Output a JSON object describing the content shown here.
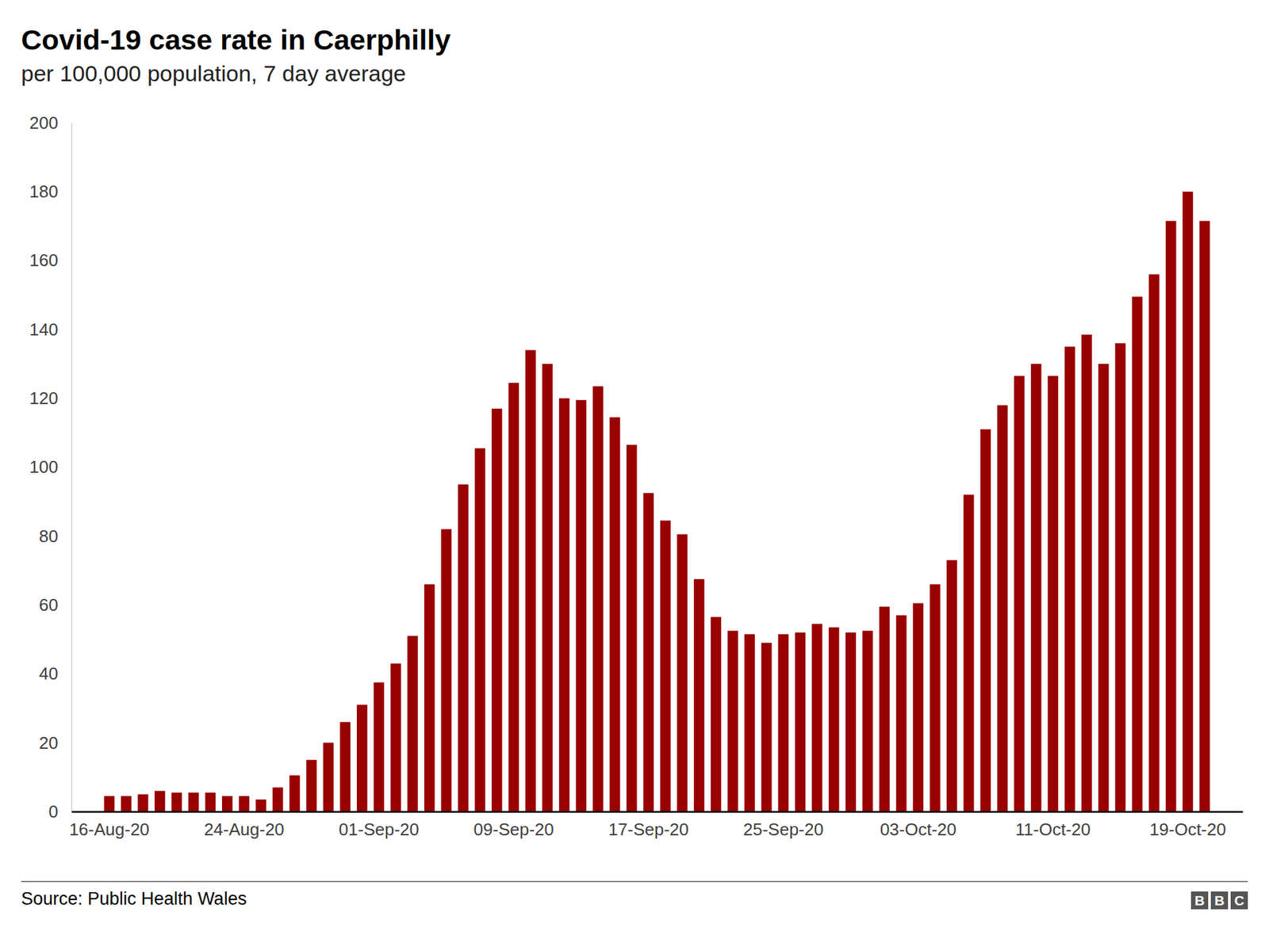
{
  "chart_data": {
    "type": "bar",
    "title": "Covid-19 case rate in Caerphilly",
    "subtitle": "per 100,000 population, 7 day average",
    "source": "Source: Public Health Wales",
    "logo": "BBC",
    "categories": [
      "16-Aug-20",
      null,
      null,
      null,
      null,
      null,
      null,
      null,
      "24-Aug-20",
      null,
      null,
      null,
      null,
      null,
      null,
      null,
      "01-Sep-20",
      null,
      null,
      null,
      null,
      null,
      null,
      null,
      "09-Sep-20",
      null,
      null,
      null,
      null,
      null,
      null,
      null,
      "17-Sep-20",
      null,
      null,
      null,
      null,
      null,
      null,
      null,
      "25-Sep-20",
      null,
      null,
      null,
      null,
      null,
      null,
      null,
      "03-Oct-20",
      null,
      null,
      null,
      null,
      null,
      null,
      null,
      "11-Oct-20",
      null,
      null,
      null,
      null,
      null,
      null,
      null,
      "19-Oct-20",
      null
    ],
    "values": [
      4.5,
      4.5,
      5,
      6,
      5.5,
      5.5,
      5.5,
      4.5,
      4.5,
      3.5,
      7,
      10.5,
      15,
      20,
      26,
      31,
      37.5,
      43,
      51,
      66,
      82,
      95,
      105.5,
      117,
      124.5,
      134,
      130,
      120,
      119.5,
      123.5,
      114.5,
      106.5,
      92.5,
      84.5,
      80.5,
      67.5,
      56.5,
      52.5,
      51.5,
      49,
      51.5,
      52,
      54.5,
      53.5,
      52,
      52.5,
      59.5,
      57,
      60.5,
      66,
      73,
      92,
      111,
      118,
      126.5,
      130,
      126.5,
      135,
      138.5,
      130,
      136,
      149.5,
      156,
      171.5,
      180,
      171.5
    ],
    "color": "#990000",
    "ylim": [
      0,
      200
    ],
    "yticks": [
      0,
      20,
      40,
      60,
      80,
      100,
      120,
      140,
      160,
      180,
      200
    ],
    "grid": false
  }
}
